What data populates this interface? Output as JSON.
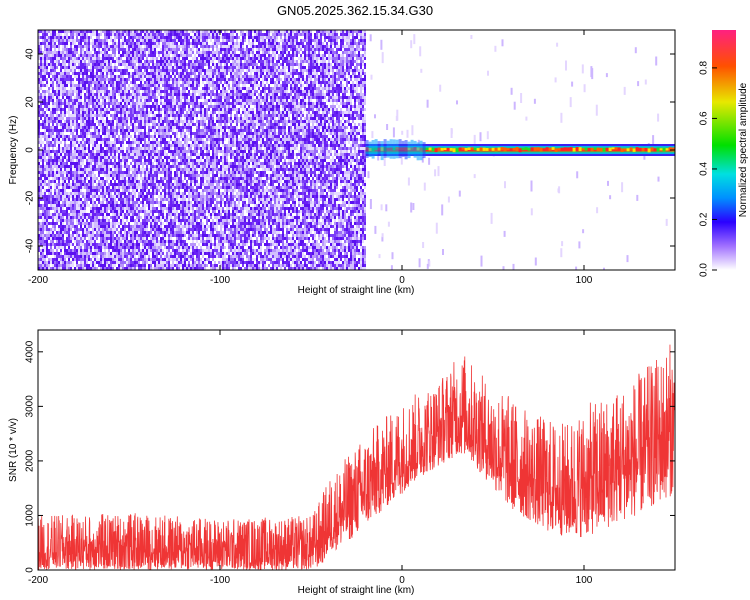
{
  "title": "GN05.2025.362.15.34.G30",
  "chart_data": [
    {
      "type": "heatmap",
      "xlabel": "Height of straight line (km)",
      "ylabel": "Frequency (Hz)",
      "xlim": [
        -200,
        150
      ],
      "ylim": [
        -50,
        50
      ],
      "xticks": [
        "-200",
        "-100",
        "0",
        "100"
      ],
      "xtick_values": [
        -200,
        -100,
        0,
        100
      ],
      "yticks": [
        "-40",
        "-20",
        "0",
        "20",
        "40"
      ],
      "ytick_values": [
        -40,
        -20,
        0,
        20,
        40
      ],
      "regions": [
        {
          "x_range": [
            -200,
            -20
          ],
          "description_value": "broadband noise",
          "amplitude": 0.15
        },
        {
          "x_range": [
            -20,
            150
          ],
          "freq_hz": 0,
          "amplitude": 0.9
        }
      ],
      "colorbar": {
        "label": "Normalized spectral amplitude",
        "ticks": [
          "0.0",
          "0.2",
          "0.4",
          "0.6",
          "0.8"
        ],
        "tick_values": [
          0.0,
          0.2,
          0.4,
          0.6,
          0.8
        ],
        "range": [
          0,
          0.95
        ]
      }
    },
    {
      "type": "line",
      "xlabel": "Height of straight line (km)",
      "ylabel": "SNR (10 * v/v)",
      "xlim": [
        -200,
        150
      ],
      "ylim": [
        0,
        4400
      ],
      "xticks": [
        "-200",
        "-100",
        "0",
        "100"
      ],
      "xtick_values": [
        -200,
        -100,
        0,
        100
      ],
      "yticks": [
        "0",
        "1000",
        "2000",
        "3000",
        "4000"
      ],
      "ytick_values": [
        0,
        1000,
        2000,
        3000,
        4000
      ],
      "color": "#ef3535",
      "envelope": {
        "x": [
          -200,
          -150,
          -100,
          -50,
          -45,
          -40,
          -30,
          -20,
          -10,
          0,
          10,
          20,
          30,
          35,
          40,
          50,
          60,
          70,
          80,
          90,
          100,
          110,
          120,
          130,
          140,
          150
        ],
        "low": [
          0,
          0,
          0,
          0,
          50,
          300,
          500,
          800,
          1100,
          1400,
          1700,
          1900,
          2100,
          2100,
          1900,
          1500,
          1100,
          900,
          700,
          600,
          600,
          700,
          900,
          1000,
          1200,
          1400
        ],
        "high": [
          1000,
          1050,
          950,
          1000,
          1300,
          1700,
          2100,
          2500,
          2800,
          3100,
          3300,
          3500,
          3900,
          4000,
          3700,
          3400,
          3200,
          2900,
          2800,
          2700,
          3000,
          3200,
          3400,
          3600,
          3900,
          4300
        ]
      }
    }
  ]
}
